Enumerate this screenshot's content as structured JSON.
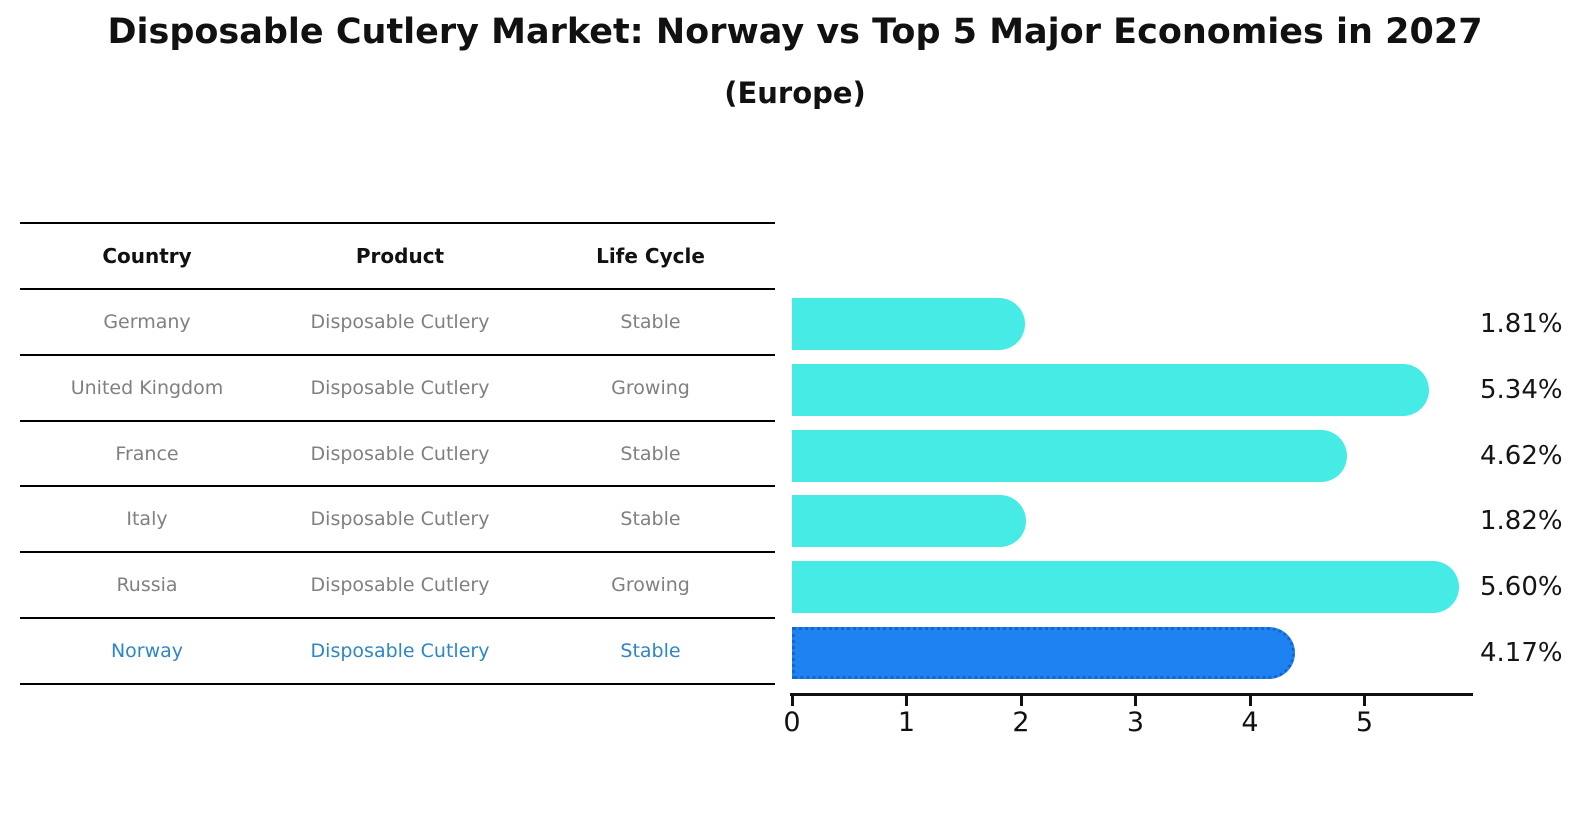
{
  "title": "Disposable Cutlery Market: Norway vs Top 5 Major Economies in 2027",
  "subtitle": "(Europe)",
  "table": {
    "headers": [
      "Country",
      "Product",
      "Life Cycle"
    ],
    "rows": [
      {
        "country": "Germany",
        "product": "Disposable Cutlery",
        "life_cycle": "Stable",
        "highlighted": false
      },
      {
        "country": "United Kingdom",
        "product": "Disposable Cutlery",
        "life_cycle": "Growing",
        "highlighted": false
      },
      {
        "country": "France",
        "product": "Disposable Cutlery",
        "life_cycle": "Stable",
        "highlighted": false
      },
      {
        "country": "Italy",
        "product": "Disposable Cutlery",
        "life_cycle": "Stable",
        "highlighted": false
      },
      {
        "country": "Russia",
        "product": "Disposable Cutlery",
        "life_cycle": "Growing",
        "highlighted": false
      },
      {
        "country": "Norway",
        "product": "Disposable Cutlery",
        "life_cycle": "Stable",
        "highlighted": true
      }
    ]
  },
  "chart_data": {
    "type": "bar",
    "orientation": "horizontal",
    "title": "Disposable Cutlery Market: Norway vs Top 5 Major Economies in 2027",
    "subtitle": "(Europe)",
    "categories": [
      "Germany",
      "United Kingdom",
      "France",
      "Italy",
      "Russia",
      "Norway"
    ],
    "values": [
      1.81,
      5.34,
      4.62,
      1.82,
      5.6,
      4.17
    ],
    "value_labels": [
      "1.81%",
      "5.34%",
      "4.62%",
      "1.82%",
      "5.60%",
      "4.17%"
    ],
    "highlight_index": 5,
    "xticks": [
      "0",
      "1",
      "2",
      "3",
      "4",
      "5"
    ],
    "xlim": [
      0,
      5.9
    ],
    "grid": false,
    "legend": "none",
    "colors": {
      "bar": "#46EBE6",
      "highlight_bar": "#1E82F0",
      "highlight_bar_edge": "#1565D0",
      "highlight_text": "#2E86C8",
      "table_text": "#808080",
      "axis_text": "#111111"
    }
  }
}
